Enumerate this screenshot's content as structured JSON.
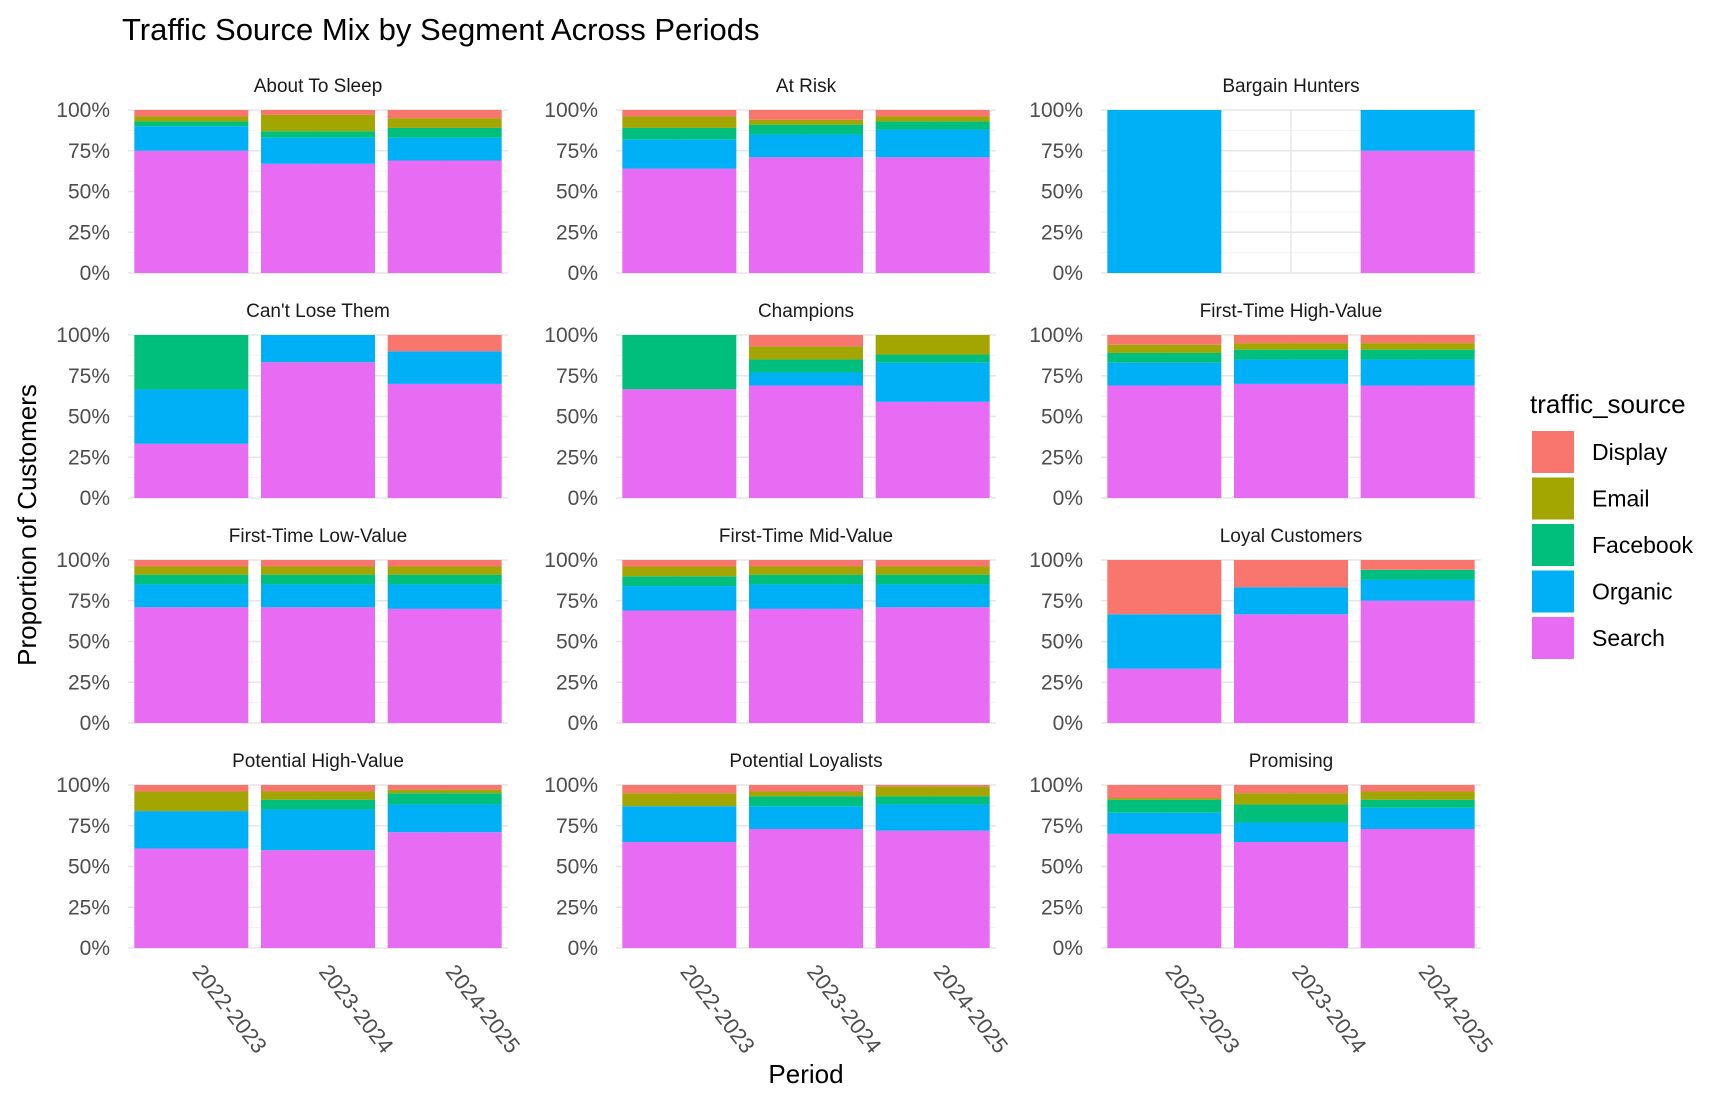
{
  "chart_data": {
    "type": "bar",
    "stacked": true,
    "normalized": true,
    "title": "Traffic Source Mix by Segment Across Periods",
    "xlabel": "Period",
    "ylabel": "Proportion of Customers",
    "categories": [
      "2022-2023",
      "2023-2024",
      "2024-2025"
    ],
    "y_ticks": [
      "0%",
      "25%",
      "50%",
      "75%",
      "100%"
    ],
    "ylim": [
      0,
      1
    ],
    "grid": true,
    "legend": {
      "title": "traffic_source",
      "position": "right",
      "items": [
        {
          "name": "Display",
          "color": "#F8766D"
        },
        {
          "name": "Email",
          "color": "#A3A500"
        },
        {
          "name": "Facebook",
          "color": "#00BF7D"
        },
        {
          "name": "Organic",
          "color": "#00B0F6"
        },
        {
          "name": "Search",
          "color": "#E76BF3"
        }
      ]
    },
    "stack_order_bottom_to_top": [
      "Search",
      "Organic",
      "Facebook",
      "Email",
      "Display"
    ],
    "panels": [
      {
        "segment": "About To Sleep",
        "periods": [
          {
            "period": "2022-2023",
            "Search": 0.75,
            "Organic": 0.15,
            "Facebook": 0.03,
            "Email": 0.03,
            "Display": 0.04
          },
          {
            "period": "2023-2024",
            "Search": 0.67,
            "Organic": 0.16,
            "Facebook": 0.04,
            "Email": 0.1,
            "Display": 0.03
          },
          {
            "period": "2024-2025",
            "Search": 0.69,
            "Organic": 0.14,
            "Facebook": 0.06,
            "Email": 0.06,
            "Display": 0.05
          }
        ]
      },
      {
        "segment": "At Risk",
        "periods": [
          {
            "period": "2022-2023",
            "Search": 0.64,
            "Organic": 0.18,
            "Facebook": 0.07,
            "Email": 0.07,
            "Display": 0.04
          },
          {
            "period": "2023-2024",
            "Search": 0.71,
            "Organic": 0.14,
            "Facebook": 0.06,
            "Email": 0.03,
            "Display": 0.06
          },
          {
            "period": "2024-2025",
            "Search": 0.71,
            "Organic": 0.17,
            "Facebook": 0.05,
            "Email": 0.03,
            "Display": 0.04
          }
        ]
      },
      {
        "segment": "Bargain Hunters",
        "periods": [
          {
            "period": "2022-2023",
            "Search": 0.0,
            "Organic": 1.0,
            "Facebook": 0.0,
            "Email": 0.0,
            "Display": 0.0
          },
          {
            "period": "2023-2024",
            "Search": 0.0,
            "Organic": 0.0,
            "Facebook": 0.0,
            "Email": 0.0,
            "Display": 0.0
          },
          {
            "period": "2024-2025",
            "Search": 0.75,
            "Organic": 0.25,
            "Facebook": 0.0,
            "Email": 0.0,
            "Display": 0.0
          }
        ]
      },
      {
        "segment": "Can't Lose Them",
        "periods": [
          {
            "period": "2022-2023",
            "Search": 0.333,
            "Organic": 0.333,
            "Facebook": 0.334,
            "Email": 0.0,
            "Display": 0.0
          },
          {
            "period": "2023-2024",
            "Search": 0.833,
            "Organic": 0.167,
            "Facebook": 0.0,
            "Email": 0.0,
            "Display": 0.0
          },
          {
            "period": "2024-2025",
            "Search": 0.7,
            "Organic": 0.2,
            "Facebook": 0.0,
            "Email": 0.0,
            "Display": 0.1
          }
        ]
      },
      {
        "segment": "Champions",
        "periods": [
          {
            "period": "2022-2023",
            "Search": 0.667,
            "Organic": 0.0,
            "Facebook": 0.333,
            "Email": 0.0,
            "Display": 0.0
          },
          {
            "period": "2023-2024",
            "Search": 0.69,
            "Organic": 0.08,
            "Facebook": 0.08,
            "Email": 0.08,
            "Display": 0.07
          },
          {
            "period": "2024-2025",
            "Search": 0.59,
            "Organic": 0.24,
            "Facebook": 0.05,
            "Email": 0.12,
            "Display": 0.0
          }
        ]
      },
      {
        "segment": "First-Time High-Value",
        "periods": [
          {
            "period": "2022-2023",
            "Search": 0.69,
            "Organic": 0.14,
            "Facebook": 0.06,
            "Email": 0.05,
            "Display": 0.06
          },
          {
            "period": "2023-2024",
            "Search": 0.7,
            "Organic": 0.15,
            "Facebook": 0.06,
            "Email": 0.04,
            "Display": 0.05
          },
          {
            "period": "2024-2025",
            "Search": 0.69,
            "Organic": 0.16,
            "Facebook": 0.06,
            "Email": 0.04,
            "Display": 0.05
          }
        ]
      },
      {
        "segment": "First-Time Low-Value",
        "periods": [
          {
            "period": "2022-2023",
            "Search": 0.71,
            "Organic": 0.14,
            "Facebook": 0.06,
            "Email": 0.05,
            "Display": 0.04
          },
          {
            "period": "2023-2024",
            "Search": 0.71,
            "Organic": 0.14,
            "Facebook": 0.06,
            "Email": 0.05,
            "Display": 0.04
          },
          {
            "period": "2024-2025",
            "Search": 0.7,
            "Organic": 0.15,
            "Facebook": 0.06,
            "Email": 0.05,
            "Display": 0.04
          }
        ]
      },
      {
        "segment": "First-Time Mid-Value",
        "periods": [
          {
            "period": "2022-2023",
            "Search": 0.69,
            "Organic": 0.15,
            "Facebook": 0.06,
            "Email": 0.06,
            "Display": 0.04
          },
          {
            "period": "2023-2024",
            "Search": 0.7,
            "Organic": 0.15,
            "Facebook": 0.06,
            "Email": 0.05,
            "Display": 0.04
          },
          {
            "period": "2024-2025",
            "Search": 0.71,
            "Organic": 0.14,
            "Facebook": 0.06,
            "Email": 0.05,
            "Display": 0.04
          }
        ]
      },
      {
        "segment": "Loyal Customers",
        "periods": [
          {
            "period": "2022-2023",
            "Search": 0.333,
            "Organic": 0.334,
            "Facebook": 0.0,
            "Email": 0.0,
            "Display": 0.333
          },
          {
            "period": "2023-2024",
            "Search": 0.667,
            "Organic": 0.166,
            "Facebook": 0.0,
            "Email": 0.0,
            "Display": 0.167
          },
          {
            "period": "2024-2025",
            "Search": 0.75,
            "Organic": 0.13,
            "Facebook": 0.06,
            "Email": 0.0,
            "Display": 0.06
          }
        ]
      },
      {
        "segment": "Potential High-Value",
        "periods": [
          {
            "period": "2022-2023",
            "Search": 0.61,
            "Organic": 0.23,
            "Facebook": 0.0,
            "Email": 0.12,
            "Display": 0.04
          },
          {
            "period": "2023-2024",
            "Search": 0.6,
            "Organic": 0.25,
            "Facebook": 0.06,
            "Email": 0.05,
            "Display": 0.04
          },
          {
            "period": "2024-2025",
            "Search": 0.71,
            "Organic": 0.17,
            "Facebook": 0.07,
            "Email": 0.02,
            "Display": 0.03
          }
        ]
      },
      {
        "segment": "Potential Loyalists",
        "periods": [
          {
            "period": "2022-2023",
            "Search": 0.65,
            "Organic": 0.22,
            "Facebook": 0.0,
            "Email": 0.08,
            "Display": 0.05
          },
          {
            "period": "2023-2024",
            "Search": 0.73,
            "Organic": 0.14,
            "Facebook": 0.06,
            "Email": 0.03,
            "Display": 0.04
          },
          {
            "period": "2024-2025",
            "Search": 0.72,
            "Organic": 0.16,
            "Facebook": 0.05,
            "Email": 0.06,
            "Display": 0.01
          }
        ]
      },
      {
        "segment": "Promising",
        "periods": [
          {
            "period": "2022-2023",
            "Search": 0.7,
            "Organic": 0.13,
            "Facebook": 0.08,
            "Email": 0.01,
            "Display": 0.08
          },
          {
            "period": "2023-2024",
            "Search": 0.65,
            "Organic": 0.12,
            "Facebook": 0.11,
            "Email": 0.07,
            "Display": 0.05
          },
          {
            "period": "2024-2025",
            "Search": 0.73,
            "Organic": 0.13,
            "Facebook": 0.05,
            "Email": 0.05,
            "Display": 0.04
          }
        ]
      }
    ]
  }
}
